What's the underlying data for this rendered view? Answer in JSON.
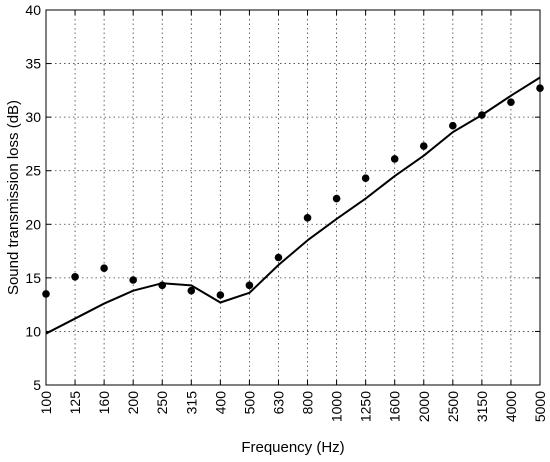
{
  "chart_data": {
    "type": "line",
    "title": "",
    "xlabel": "Frequency (Hz)",
    "ylabel": "Sound transmission loss (dB)",
    "categories": [
      "100",
      "125",
      "160",
      "200",
      "250",
      "315",
      "400",
      "500",
      "630",
      "800",
      "1000",
      "1250",
      "1600",
      "2000",
      "2500",
      "3150",
      "4000",
      "5000"
    ],
    "ylim": [
      5,
      40
    ],
    "yticks": [
      5,
      10,
      15,
      20,
      25,
      30,
      35,
      40
    ],
    "grid": true,
    "legend": "none",
    "series": [
      {
        "style": "line",
        "color": "#000000",
        "values": [
          9.8,
          11.2,
          12.6,
          13.8,
          14.5,
          14.3,
          12.7,
          13.6,
          16.2,
          18.5,
          20.5,
          22.4,
          24.5,
          26.4,
          28.6,
          30.2,
          32.0,
          33.7
        ]
      },
      {
        "style": "markers",
        "color": "#000000",
        "values": [
          13.5,
          15.1,
          15.9,
          14.8,
          14.3,
          13.8,
          13.4,
          14.3,
          16.9,
          20.6,
          22.4,
          24.3,
          26.1,
          27.3,
          29.2,
          30.2,
          31.4,
          32.7
        ]
      }
    ]
  }
}
